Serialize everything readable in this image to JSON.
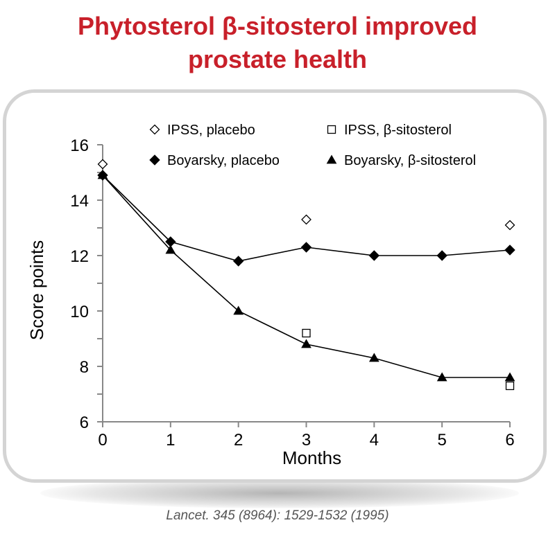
{
  "header": {
    "title_line1": "Phytosterol β-sitosterol improved",
    "title_line2": "prostate health"
  },
  "citation": "Lancet. 345 (8964): 1529-1532 (1995)",
  "colors": {
    "title": "#c8202a",
    "card_border": "#d4d4d4",
    "ink": "#000000"
  },
  "chart_data": {
    "type": "line",
    "xlabel": "Months",
    "ylabel": "Score points",
    "xlim": [
      0,
      6
    ],
    "ylim": [
      6,
      16
    ],
    "x_ticks": [
      0,
      1,
      2,
      3,
      4,
      5,
      6
    ],
    "y_tick_labels": [
      16,
      14,
      12,
      10,
      8,
      6
    ],
    "grid": false,
    "legend_position": "top",
    "series": [
      {
        "name": "IPSS, placebo",
        "marker": "diamond-open",
        "line": false,
        "x": [
          0,
          3,
          6
        ],
        "y": [
          15.3,
          13.3,
          13.1
        ]
      },
      {
        "name": "IPSS, β-sitosterol",
        "marker": "square-open",
        "line": false,
        "x": [
          3,
          6
        ],
        "y": [
          9.2,
          7.3
        ]
      },
      {
        "name": "Boyarsky, placebo",
        "marker": "diamond-filled",
        "line": true,
        "x": [
          0,
          1,
          2,
          3,
          4,
          5,
          6
        ],
        "y": [
          14.9,
          12.5,
          11.8,
          12.3,
          12.0,
          12.0,
          12.2
        ]
      },
      {
        "name": "Boyarsky, β-sitosterol",
        "marker": "triangle-filled",
        "line": true,
        "x": [
          0,
          1,
          2,
          3,
          4,
          5,
          6
        ],
        "y": [
          14.9,
          12.2,
          10.0,
          8.8,
          8.3,
          7.6,
          7.6
        ]
      }
    ]
  }
}
